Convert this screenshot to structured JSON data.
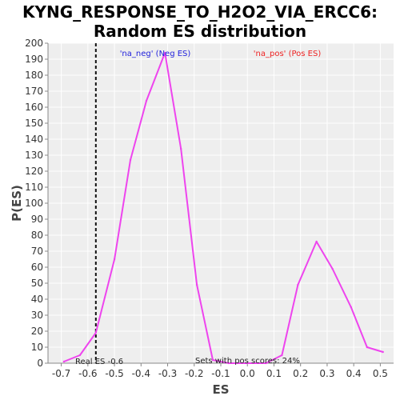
{
  "title_line1": "KYNG_RESPONSE_TO_H2O2_VIA_ERCC6:",
  "title_line2": "Random ES distribution",
  "chart_data": {
    "type": "line",
    "xlabel": "ES",
    "ylabel": "P(ES)",
    "xlim": [
      -0.75,
      0.55
    ],
    "ylim": [
      0,
      200
    ],
    "x_ticks": [
      "-0.7",
      "-0.6",
      "-0.5",
      "-0.4",
      "-0.3",
      "-0.2",
      "-0.1",
      "0.0",
      "0.1",
      "0.2",
      "0.3",
      "0.4",
      "0.5"
    ],
    "y_ticks": [
      "0",
      "10",
      "20",
      "30",
      "40",
      "50",
      "60",
      "70",
      "80",
      "90",
      "100",
      "110",
      "120",
      "130",
      "140",
      "150",
      "160",
      "170",
      "180",
      "190",
      "200"
    ],
    "grid": true,
    "series": [
      {
        "color": "#ee44ee",
        "x": [
          -0.69,
          -0.63,
          -0.57,
          -0.5,
          -0.44,
          -0.38,
          -0.31,
          -0.25,
          -0.19,
          -0.13,
          -0.07,
          0.0,
          0.07,
          0.13,
          0.19,
          0.26,
          0.32,
          0.39,
          0.45,
          0.51
        ],
        "y": [
          1,
          5,
          19,
          65,
          127,
          164,
          194,
          134,
          49,
          2,
          0,
          0,
          0,
          5,
          49,
          76,
          59,
          35,
          10,
          7
        ]
      }
    ],
    "real_es": -0.57,
    "annotations": {
      "neg": "'na_neg' (Neg ES)",
      "pos": "'na_pos' (Pos ES)",
      "real_es": "Real ES -0.6",
      "pos_scores": "Sets with pos scores: 24%"
    },
    "colors": {
      "neg": "#2222dd",
      "pos": "#ee2222",
      "line": "#ee44ee",
      "grid": "#ffffff",
      "plot_bg": "#eeeeee"
    }
  }
}
